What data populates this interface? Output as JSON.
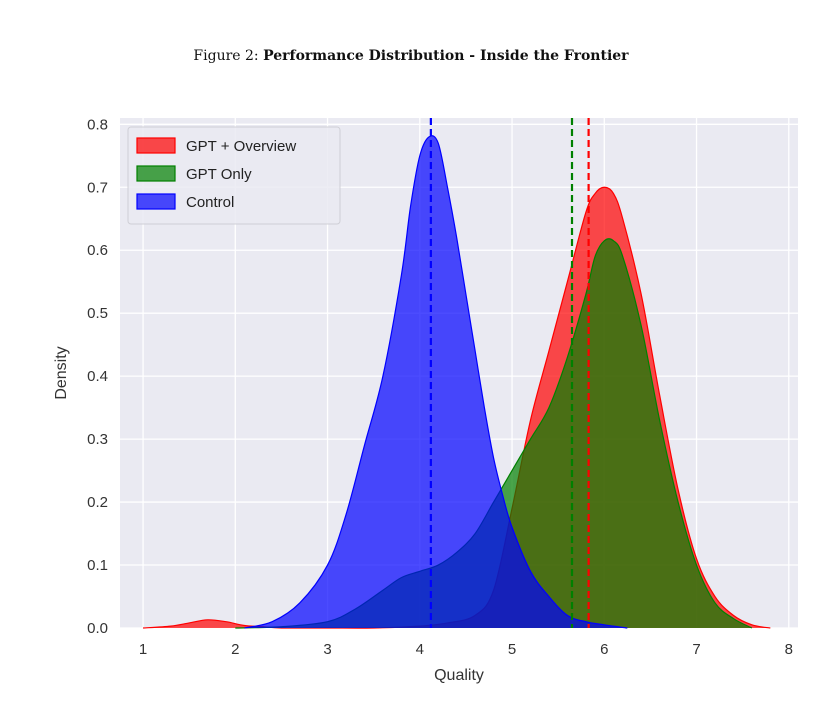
{
  "caption": {
    "label": "Figure 2:",
    "title": "Performance Distribution - Inside the Frontier"
  },
  "chart_data": {
    "type": "area",
    "xlabel": "Quality",
    "ylabel": "Density",
    "xlim": [
      0.75,
      8.1
    ],
    "ylim": [
      0,
      0.81
    ],
    "xticks": [
      1,
      2,
      3,
      4,
      5,
      6,
      7,
      8
    ],
    "yticks": [
      0.0,
      0.1,
      0.2,
      0.3,
      0.4,
      0.5,
      0.6,
      0.7,
      0.8
    ],
    "ytick_labels": [
      "0.0",
      "0.1",
      "0.2",
      "0.3",
      "0.4",
      "0.5",
      "0.6",
      "0.7",
      "0.8"
    ],
    "grid": true,
    "legend_position": "top-left",
    "series": [
      {
        "name": "Control",
        "color": "#0000ff",
        "mean": 4.12,
        "x": [
          2.1,
          2.4,
          2.7,
          3.0,
          3.2,
          3.4,
          3.6,
          3.8,
          3.9,
          4.0,
          4.1,
          4.2,
          4.3,
          4.4,
          4.5,
          4.6,
          4.7,
          4.8,
          4.9,
          5.0,
          5.2,
          5.4,
          5.6,
          5.8,
          6.0,
          6.25
        ],
        "y": [
          0.0,
          0.01,
          0.04,
          0.1,
          0.18,
          0.29,
          0.4,
          0.56,
          0.67,
          0.75,
          0.78,
          0.77,
          0.7,
          0.62,
          0.53,
          0.44,
          0.35,
          0.27,
          0.21,
          0.16,
          0.09,
          0.05,
          0.02,
          0.01,
          0.005,
          0.0
        ]
      },
      {
        "name": "GPT + Overview",
        "color": "#ff0000",
        "mean": 5.83,
        "x": [
          1.0,
          1.3,
          1.5,
          1.7,
          1.9,
          2.1,
          2.3,
          2.5,
          3.0,
          3.5,
          4.0,
          4.3,
          4.6,
          4.8,
          5.0,
          5.2,
          5.4,
          5.6,
          5.8,
          5.9,
          6.0,
          6.1,
          6.2,
          6.4,
          6.6,
          6.8,
          7.0,
          7.2,
          7.4,
          7.6,
          7.8
        ],
        "y": [
          0.0,
          0.003,
          0.008,
          0.013,
          0.01,
          0.004,
          0.002,
          0.0,
          0.0,
          0.0,
          0.003,
          0.008,
          0.02,
          0.06,
          0.19,
          0.33,
          0.44,
          0.55,
          0.66,
          0.69,
          0.7,
          0.69,
          0.65,
          0.53,
          0.37,
          0.22,
          0.11,
          0.05,
          0.02,
          0.005,
          0.0
        ]
      },
      {
        "name": "GPT Only",
        "color": "#008000",
        "mean": 5.65,
        "x": [
          2.0,
          2.5,
          3.0,
          3.3,
          3.6,
          3.8,
          4.0,
          4.2,
          4.4,
          4.6,
          4.8,
          5.0,
          5.2,
          5.4,
          5.6,
          5.8,
          5.9,
          6.0,
          6.1,
          6.2,
          6.4,
          6.6,
          6.8,
          7.0,
          7.2,
          7.4,
          7.6
        ],
        "y": [
          0.0,
          0.002,
          0.01,
          0.03,
          0.06,
          0.08,
          0.09,
          0.1,
          0.12,
          0.15,
          0.2,
          0.25,
          0.3,
          0.35,
          0.43,
          0.53,
          0.59,
          0.615,
          0.615,
          0.59,
          0.48,
          0.33,
          0.2,
          0.1,
          0.04,
          0.015,
          0.0
        ]
      }
    ]
  }
}
